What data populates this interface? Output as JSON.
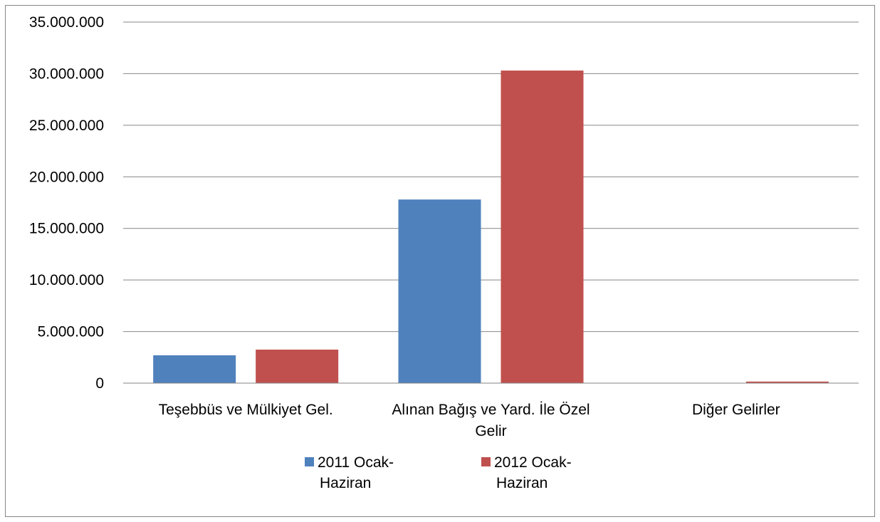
{
  "chart_data": {
    "type": "bar",
    "title": "",
    "xlabel": "",
    "ylabel": "",
    "categories": [
      [
        "Teşebbüs ve Mülkiyet Gel."
      ],
      [
        "Alınan Bağış ve Yard. İle Özel",
        "Gelir"
      ],
      [
        "Diğer Gelirler"
      ]
    ],
    "series": [
      {
        "name": [
          "2011 Ocak-",
          "Haziran"
        ],
        "values": [
          2700000,
          17800000,
          30000
        ]
      },
      {
        "name": [
          "2012 Ocak-",
          "Haziran"
        ],
        "values": [
          3250000,
          30300000,
          150000
        ]
      }
    ],
    "ylim": [
      0,
      35000000
    ],
    "yticks": [
      0,
      5000000,
      10000000,
      15000000,
      20000000,
      25000000,
      30000000,
      35000000
    ],
    "ytick_labels": [
      "0",
      "5.000.000",
      "10.000.000",
      "15.000.000",
      "20.000.000",
      "25.000.000",
      "30.000.000",
      "35.000.000"
    ],
    "grid": true,
    "legend_position": "bottom",
    "colors": [
      "#4f81bd",
      "#c0504d"
    ]
  }
}
